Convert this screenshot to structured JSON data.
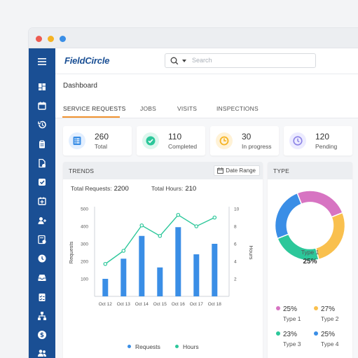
{
  "app": {
    "logo": "FieldCircle",
    "search_placeholder": "Search",
    "breadcrumb": "Dashboard"
  },
  "window_dots": [
    "#ed5b51",
    "#f5b323",
    "#3a8ee6"
  ],
  "tabs": [
    {
      "label": "SERVICE REQUESTS",
      "active": true
    },
    {
      "label": "JOBS",
      "active": false
    },
    {
      "label": "VISITS",
      "active": false
    },
    {
      "label": "INSPECTIONS",
      "active": false
    }
  ],
  "sidebar_icons": [
    "menu-icon",
    "dashboard-icon",
    "calendar-icon",
    "history-icon",
    "clipboard-icon",
    "document-settings-icon",
    "checkbox-icon",
    "calendar-plus-icon",
    "user-assign-icon",
    "report-icon",
    "clock-icon",
    "inbox-icon",
    "checklist-icon",
    "hierarchy-icon",
    "dollar-icon",
    "users-icon"
  ],
  "stats": [
    {
      "value": "260",
      "label": "Total",
      "icon": "list-icon",
      "color": "#3a8ee6",
      "bg": "#e3efff"
    },
    {
      "value": "110",
      "label": "Completed",
      "icon": "check-circle-icon",
      "color": "#2cc79a",
      "bg": "#ddf7ee"
    },
    {
      "value": "30",
      "label": "In progress",
      "icon": "progress-icon",
      "color": "#f5b323",
      "bg": "#fff2d6"
    },
    {
      "value": "120",
      "label": "Pending",
      "icon": "clock-icon",
      "color": "#8c83e6",
      "bg": "#ecebff"
    }
  ],
  "trends": {
    "title": "TRENDS",
    "date_range_label": "Date Range",
    "total_requests_label": "Total Requests:",
    "total_requests_value": "2200",
    "total_hours_label": "Total Hours:",
    "total_hours_value": "210"
  },
  "type_panel": {
    "title": "TYPE",
    "center_label": "Type 1",
    "center_value": "25%"
  },
  "chart_data": [
    {
      "type": "bar",
      "categories": [
        "Oct 12",
        "Oct 13",
        "Oct 14",
        "Oct 15",
        "Oct 16",
        "Oct 17",
        "Oct 18"
      ],
      "series": [
        {
          "name": "Requests",
          "type": "bar",
          "axis": "left",
          "color": "#3a8ee6",
          "values": [
            100,
            215,
            345,
            165,
            395,
            240,
            300
          ]
        },
        {
          "name": "Hours",
          "type": "line",
          "axis": "right",
          "color": "#2cc79a",
          "values": [
            3.7,
            5.2,
            8.1,
            6.9,
            9.3,
            8.0,
            9.0
          ]
        }
      ],
      "ylabel": "Requests",
      "ylabel_right": "Hours",
      "yticks": [
        100,
        200,
        300,
        400,
        500
      ],
      "yticks_right": [
        2,
        4,
        6,
        8,
        10
      ],
      "ylim": [
        0,
        500
      ],
      "ylim_right": [
        0,
        10
      ],
      "legend": "bottom"
    },
    {
      "type": "pie",
      "donut": true,
      "labels": [
        "Type 1",
        "Type 2",
        "Type 3",
        "Type 4"
      ],
      "values": [
        25,
        27,
        23,
        25
      ],
      "display": [
        "25%",
        "27%",
        "23%",
        "25%"
      ],
      "colors": [
        "#d774c2",
        "#f9c04e",
        "#2cc79a",
        "#3a8ee6"
      ],
      "legend": "bottom"
    }
  ]
}
